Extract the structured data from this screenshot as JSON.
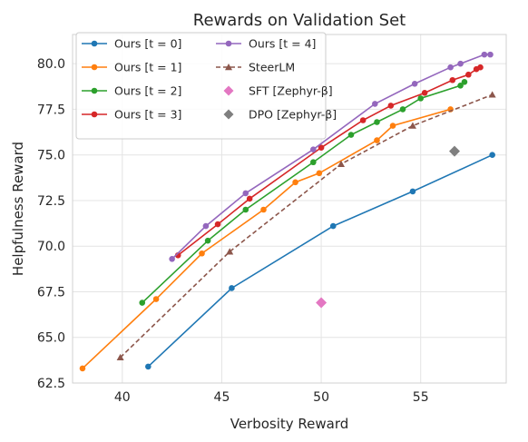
{
  "chart_data": {
    "type": "line",
    "title": "Rewards on Validation Set",
    "xlabel": "Verbosity Reward",
    "ylabel": "Helpfulness Reward",
    "xlim": [
      37.5,
      59.3
    ],
    "ylim": [
      62.5,
      81.6
    ],
    "xticks": [
      40,
      45,
      50,
      55
    ],
    "xtick_labels": [
      "40",
      "45",
      "50",
      "55"
    ],
    "yticks": [
      62.5,
      65.0,
      67.5,
      70.0,
      72.5,
      75.0,
      77.5,
      80.0
    ],
    "ytick_labels": [
      "62.5",
      "65.0",
      "67.5",
      "70.0",
      "72.5",
      "75.0",
      "77.5",
      "80.0"
    ],
    "grid": true,
    "legend_position": "top-left",
    "series": [
      {
        "name": "Ours [t = 0]",
        "color": "#1f77b4",
        "style": "solid",
        "marker": "circle",
        "x": [
          41.3,
          45.5,
          50.6,
          54.6,
          58.6
        ],
        "y": [
          63.4,
          67.7,
          71.1,
          73.0,
          75.0
        ]
      },
      {
        "name": "Ours [t = 1]",
        "color": "#ff7f0e",
        "style": "solid",
        "marker": "circle",
        "x": [
          38.0,
          41.7,
          44.0,
          47.1,
          48.7,
          49.9,
          52.8,
          53.6,
          56.5
        ],
        "y": [
          63.3,
          67.1,
          69.6,
          72.0,
          73.5,
          74.0,
          75.8,
          76.6,
          77.5
        ]
      },
      {
        "name": "Ours [t = 2]",
        "color": "#2ca02c",
        "style": "solid",
        "marker": "circle",
        "x": [
          41.0,
          44.3,
          46.2,
          49.6,
          51.5,
          52.8,
          54.1,
          55.0,
          57.0,
          57.2
        ],
        "y": [
          66.9,
          70.3,
          72.0,
          74.6,
          76.1,
          76.8,
          77.5,
          78.1,
          78.8,
          79.0
        ]
      },
      {
        "name": "Ours [t = 3]",
        "color": "#d62728",
        "style": "solid",
        "marker": "circle",
        "x": [
          42.8,
          44.8,
          46.4,
          50.0,
          52.1,
          53.5,
          55.2,
          56.6,
          57.4,
          57.8,
          58.0
        ],
        "y": [
          69.5,
          71.2,
          72.6,
          75.4,
          76.9,
          77.7,
          78.4,
          79.1,
          79.4,
          79.7,
          79.8
        ]
      },
      {
        "name": "Ours [t = 4]",
        "color": "#9467bd",
        "style": "solid",
        "marker": "circle",
        "x": [
          42.5,
          44.2,
          46.2,
          49.6,
          52.7,
          54.7,
          56.5,
          57.0,
          58.2,
          58.5
        ],
        "y": [
          69.3,
          71.1,
          72.9,
          75.3,
          77.8,
          78.9,
          79.8,
          80.0,
          80.5,
          80.5
        ]
      },
      {
        "name": "SteerLM",
        "color": "#8c564b",
        "style": "dashed",
        "marker": "triangle",
        "x": [
          39.9,
          45.4,
          51.0,
          54.6,
          58.6
        ],
        "y": [
          63.9,
          69.7,
          74.5,
          76.6,
          78.3
        ]
      },
      {
        "name": "SFT [Zephyr-β]",
        "color": "#e377c2",
        "style": "none",
        "marker": "diamond",
        "x": [
          50.0
        ],
        "y": [
          66.9
        ]
      },
      {
        "name": "DPO [Zephyr-β]",
        "color": "#7f7f7f",
        "style": "none",
        "marker": "diamond",
        "x": [
          56.7
        ],
        "y": [
          75.2
        ]
      }
    ]
  }
}
